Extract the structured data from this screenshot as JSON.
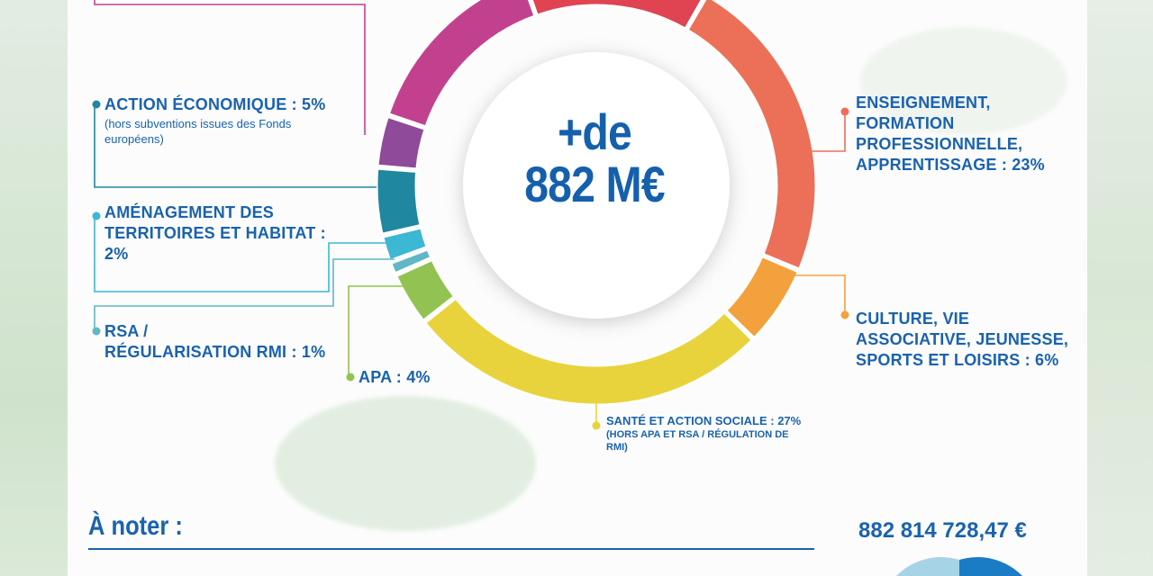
{
  "chart_data": {
    "type": "pie",
    "variant": "donut",
    "center_text": [
      "+de",
      "882 M€"
    ],
    "slices": [
      {
        "label": "ENSEIGNEMENT, FORMATION PROFESSIONNELLE, APPRENTISSAGE : 23%",
        "value": 23,
        "color": "#ec6f57"
      },
      {
        "label": "CULTURE, VIE ASSOCIATIVE, JEUNESSE, SPORTS ET LOISIRS : 6%",
        "value": 6,
        "color": "#f3a13c"
      },
      {
        "label": "SANTÉ ET ACTION SOCIALE : 27%",
        "value": 27,
        "color": "#e8d33c"
      },
      {
        "label": "APA : 4%",
        "value": 4,
        "color": "#92c352"
      },
      {
        "label": "RSA / RÉGULARISATION RMI : 1%",
        "value": 1,
        "color": "#5fb8c4"
      },
      {
        "label": "AMÉNAGEMENT DES TERRITOIRES ET HABITAT : 2%",
        "value": 2,
        "color": "#3cb7d4"
      },
      {
        "label": "ACTION ÉCONOMIQUE : 5%",
        "value": 5,
        "color": "#1f879f"
      },
      {
        "label": "",
        "value": null,
        "color": "#8f4a9a"
      },
      {
        "label": "",
        "value": null,
        "color": "#c2418f"
      },
      {
        "label": "",
        "value": null,
        "color": "#e04352"
      }
    ]
  },
  "labels": {
    "enseignement": "ENSEIGNEMENT,\nFORMATION\nPROFESSIONNELLE,\nAPPRENTISSAGE : 23%",
    "culture": "CULTURE, VIE\nASSOCIATIVE, JEUNESSE,\nSPORTS ET LOISIRS : 6%",
    "sante": "SANTÉ ET ACTION SOCIALE : 27%",
    "sante_note": "(HORS APA ET RSA / RÉGULATION DE\nRMI)",
    "apa": "APA : 4%",
    "rsa": "RSA /\nRÉGULARISATION RMI : 1%",
    "amenagement": "AMÉNAGEMENT DES\nTERRITOIRES ET HABITAT :\n2%",
    "action_eco": "ACTION ÉCONOMIQUE : 5%",
    "action_eco_note": "(hors subventions issues des Fonds\neuropéens)"
  },
  "center": {
    "line1": "+de",
    "line2": "882 M€"
  },
  "footer": {
    "heading": "À noter :",
    "total": "882 814 728,47 €"
  },
  "colors": {
    "text_blue": "#1a62ae"
  }
}
